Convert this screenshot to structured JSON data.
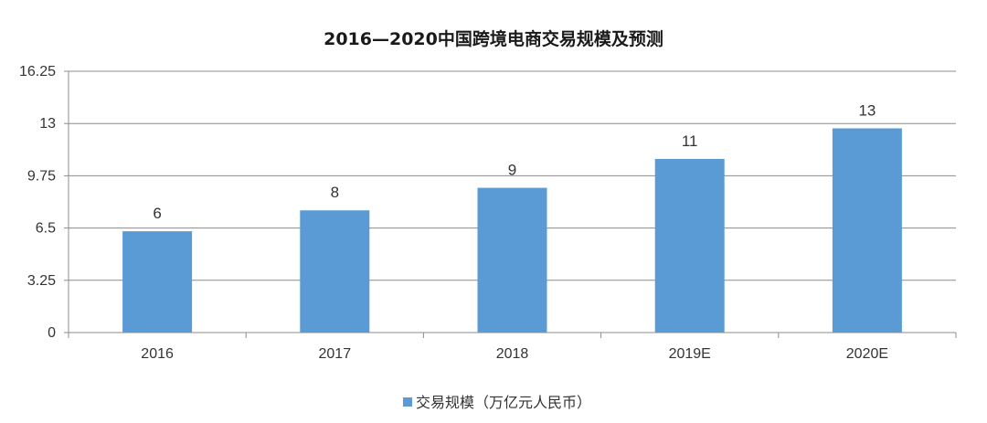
{
  "chart_data": {
    "type": "bar",
    "title": "2016—2020中国跨境电商交易规模及预测",
    "categories": [
      "2016",
      "2017",
      "2018",
      "2019E",
      "2020E"
    ],
    "series": [
      {
        "name": "交易规模（万亿元人民币）",
        "values": [
          6.3,
          7.6,
          9.0,
          10.8,
          12.7
        ],
        "labels": [
          "6",
          "8",
          "9",
          "11",
          "13"
        ]
      }
    ],
    "yticks": [
      "0",
      "3.25",
      "6.5",
      "9.75",
      "13",
      "16.25"
    ],
    "ylim": [
      0,
      16.25
    ],
    "grid": true,
    "legend_position": "bottom",
    "bar_color": "#5b9bd5",
    "grid_color": "#8c8c8c"
  }
}
